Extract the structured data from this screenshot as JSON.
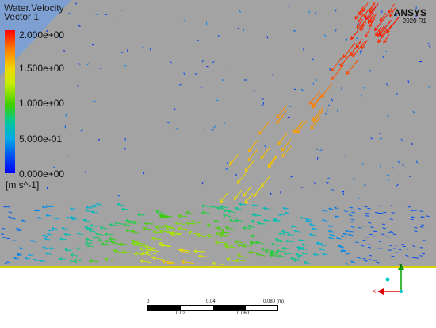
{
  "legend": {
    "variable": "Water.Velocity",
    "subtitle": "Vector 1",
    "units": "[m s^-1]",
    "ticks": [
      "2.000e+00",
      "1.500e+00",
      "1.000e+00",
      "5.000e-01",
      "0.000e+00"
    ],
    "range": [
      0,
      2
    ]
  },
  "branding": {
    "name": "ANSYS",
    "version": "2020 R1"
  },
  "scale_bar": {
    "top_labels": [
      "0",
      "0.04",
      "0.080"
    ],
    "unit": "(m)",
    "bottom_labels": [
      "0.02",
      "0.060"
    ]
  },
  "triad": {
    "x_label": "X",
    "y_label": "Y",
    "z_label": ""
  },
  "colors": {
    "background": "#a3a3a3",
    "wall": "#d9d300",
    "x_axis": "#e00000",
    "y_axis": "#00a000",
    "z_dot": "#00c8c8"
  }
}
